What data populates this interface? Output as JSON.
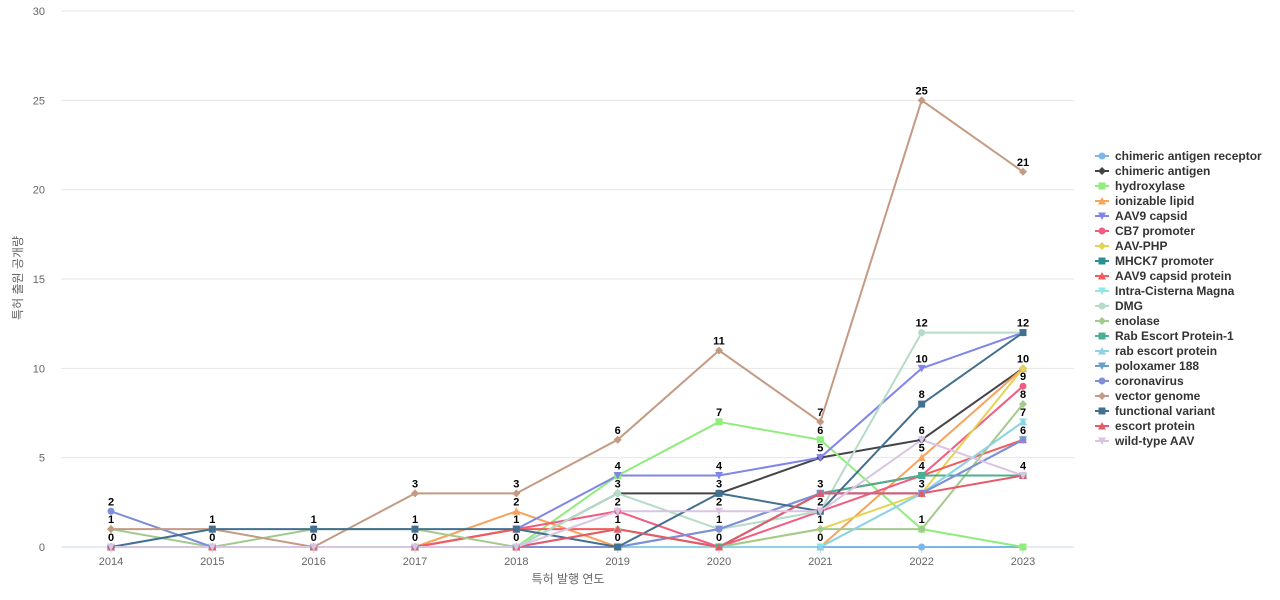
{
  "chart_data": {
    "type": "line",
    "title": "",
    "xlabel": "특허 발행 연도",
    "ylabel": "특허 출원 공개량",
    "ylim": [
      0,
      30
    ],
    "yticks": [
      0,
      5,
      10,
      15,
      20,
      25,
      30
    ],
    "x": [
      2014,
      2015,
      2016,
      2017,
      2018,
      2019,
      2020,
      2021,
      2022,
      2023
    ],
    "legend_position": "right",
    "series": [
      {
        "name": "chimeric antigen receptor",
        "color": "#7cb5ec",
        "marker": "circle",
        "values": [
          0,
          0,
          0,
          0,
          0,
          0,
          0,
          0,
          0,
          0
        ]
      },
      {
        "name": "chimeric antigen",
        "color": "#434348",
        "marker": "diamond",
        "values": [
          0,
          0,
          0,
          0,
          0,
          3,
          3,
          5,
          6,
          10
        ]
      },
      {
        "name": "hydroxylase",
        "color": "#90ed7d",
        "marker": "square",
        "values": [
          0,
          0,
          0,
          0,
          0,
          4,
          7,
          6,
          1,
          0
        ]
      },
      {
        "name": "ionizable lipid",
        "color": "#f7a35c",
        "marker": "triangle",
        "values": [
          0,
          0,
          0,
          0,
          2,
          0,
          0,
          0,
          5,
          10
        ]
      },
      {
        "name": "AAV9 capsid",
        "color": "#8085e9",
        "marker": "triangle-down",
        "values": [
          0,
          0,
          0,
          0,
          1,
          4,
          4,
          5,
          10,
          12
        ]
      },
      {
        "name": "CB7 promoter",
        "color": "#f15c80",
        "marker": "circle",
        "values": [
          0,
          0,
          0,
          0,
          1,
          2,
          0,
          2,
          4,
          9
        ]
      },
      {
        "name": "AAV-PHP",
        "color": "#e4d354",
        "marker": "diamond",
        "values": [
          0,
          0,
          0,
          0,
          0,
          0,
          0,
          1,
          3,
          10
        ]
      },
      {
        "name": "MHCK7 promoter",
        "color": "#2b908f",
        "marker": "square",
        "values": [
          0,
          0,
          0,
          0,
          0,
          0,
          0,
          3,
          4,
          4
        ]
      },
      {
        "name": "AAV9 capsid protein",
        "color": "#f45b5b",
        "marker": "triangle",
        "values": [
          0,
          0,
          0,
          0,
          1,
          1,
          0,
          3,
          4,
          6
        ]
      },
      {
        "name": "Intra-Cisterna Magna",
        "color": "#91e8e1",
        "marker": "triangle-down",
        "values": [
          0,
          0,
          0,
          0,
          0,
          0,
          0,
          0,
          3,
          7
        ]
      },
      {
        "name": "DMG",
        "color": "#b4dcc8",
        "marker": "circle",
        "values": [
          0,
          0,
          0,
          0,
          0,
          3,
          1,
          2,
          12,
          12
        ]
      },
      {
        "name": "enolase",
        "color": "#a3c98c",
        "marker": "diamond",
        "values": [
          1,
          0,
          1,
          1,
          0,
          1,
          0,
          1,
          1,
          8
        ]
      },
      {
        "name": "Rab Escort Protein-1",
        "color": "#4caf93",
        "marker": "square",
        "values": [
          0,
          0,
          0,
          0,
          0,
          0,
          0,
          3,
          4,
          4
        ]
      },
      {
        "name": "rab escort protein",
        "color": "#8fd1e6",
        "marker": "triangle",
        "values": [
          0,
          0,
          0,
          0,
          0,
          0,
          0,
          0,
          3,
          7
        ]
      },
      {
        "name": "poloxamer 188",
        "color": "#6a9ec9",
        "marker": "triangle-down",
        "values": [
          0,
          0,
          0,
          0,
          0,
          0,
          1,
          3,
          3,
          6
        ]
      },
      {
        "name": "coronavirus",
        "color": "#7f8fd6",
        "marker": "circle",
        "values": [
          2,
          0,
          0,
          0,
          0,
          0,
          1,
          3,
          3,
          6
        ]
      },
      {
        "name": "vector genome",
        "color": "#c49a83",
        "marker": "diamond",
        "values": [
          1,
          1,
          0,
          3,
          3,
          6,
          11,
          7,
          25,
          21
        ]
      },
      {
        "name": "functional variant",
        "color": "#43708f",
        "marker": "square",
        "values": [
          0,
          1,
          1,
          1,
          1,
          0,
          3,
          2,
          8,
          12
        ]
      },
      {
        "name": "escort protein",
        "color": "#e45a6a",
        "marker": "triangle",
        "values": [
          0,
          0,
          0,
          0,
          0,
          1,
          0,
          3,
          3,
          4
        ]
      },
      {
        "name": "wild-type AAV",
        "color": "#d9c4e4",
        "marker": "triangle-down",
        "values": [
          0,
          0,
          0,
          0,
          0,
          2,
          2,
          2,
          6,
          4
        ]
      }
    ],
    "data_labels": [
      {
        "x": 2014,
        "text": "2",
        "value": 2
      },
      {
        "x": 2014,
        "text": "1",
        "value": 1
      },
      {
        "x": 2014,
        "text": "0",
        "value": 0
      },
      {
        "x": 2015,
        "text": "1",
        "value": 1
      },
      {
        "x": 2015,
        "text": "0",
        "value": 0
      },
      {
        "x": 2016,
        "text": "1",
        "value": 1
      },
      {
        "x": 2016,
        "text": "0",
        "value": 0
      },
      {
        "x": 2017,
        "text": "3",
        "value": 3
      },
      {
        "x": 2017,
        "text": "1",
        "value": 1
      },
      {
        "x": 2017,
        "text": "0",
        "value": 0
      },
      {
        "x": 2018,
        "text": "3",
        "value": 3
      },
      {
        "x": 2018,
        "text": "2",
        "value": 2
      },
      {
        "x": 2018,
        "text": "1",
        "value": 1
      },
      {
        "x": 2018,
        "text": "0",
        "value": 0
      },
      {
        "x": 2019,
        "text": "6",
        "value": 6
      },
      {
        "x": 2019,
        "text": "4",
        "value": 4
      },
      {
        "x": 2019,
        "text": "3",
        "value": 3
      },
      {
        "x": 2019,
        "text": "2",
        "value": 2
      },
      {
        "x": 2019,
        "text": "1",
        "value": 1
      },
      {
        "x": 2019,
        "text": "0",
        "value": 0
      },
      {
        "x": 2020,
        "text": "11",
        "value": 11
      },
      {
        "x": 2020,
        "text": "7",
        "value": 7
      },
      {
        "x": 2020,
        "text": "4",
        "value": 4
      },
      {
        "x": 2020,
        "text": "3",
        "value": 3
      },
      {
        "x": 2020,
        "text": "2",
        "value": 2
      },
      {
        "x": 2020,
        "text": "1",
        "value": 1
      },
      {
        "x": 2020,
        "text": "0",
        "value": 0
      },
      {
        "x": 2021,
        "text": "7",
        "value": 7
      },
      {
        "x": 2021,
        "text": "6",
        "value": 6
      },
      {
        "x": 2021,
        "text": "5",
        "value": 5
      },
      {
        "x": 2021,
        "text": "3",
        "value": 3
      },
      {
        "x": 2021,
        "text": "2",
        "value": 2
      },
      {
        "x": 2021,
        "text": "1",
        "value": 1
      },
      {
        "x": 2021,
        "text": "0",
        "value": 0
      },
      {
        "x": 2022,
        "text": "25",
        "value": 25
      },
      {
        "x": 2022,
        "text": "12",
        "value": 12
      },
      {
        "x": 2022,
        "text": "10",
        "value": 10
      },
      {
        "x": 2022,
        "text": "8",
        "value": 8
      },
      {
        "x": 2022,
        "text": "6",
        "value": 6
      },
      {
        "x": 2022,
        "text": "5",
        "value": 5
      },
      {
        "x": 2022,
        "text": "4",
        "value": 4
      },
      {
        "x": 2022,
        "text": "3",
        "value": 3
      },
      {
        "x": 2022,
        "text": "1",
        "value": 1
      },
      {
        "x": 2023,
        "text": "21",
        "value": 21
      },
      {
        "x": 2023,
        "text": "12",
        "value": 12
      },
      {
        "x": 2023,
        "text": "10",
        "value": 10
      },
      {
        "x": 2023,
        "text": "9",
        "value": 9
      },
      {
        "x": 2023,
        "text": "8",
        "value": 8
      },
      {
        "x": 2023,
        "text": "7",
        "value": 7
      },
      {
        "x": 2023,
        "text": "6",
        "value": 6
      },
      {
        "x": 2023,
        "text": "4",
        "value": 4
      }
    ]
  }
}
